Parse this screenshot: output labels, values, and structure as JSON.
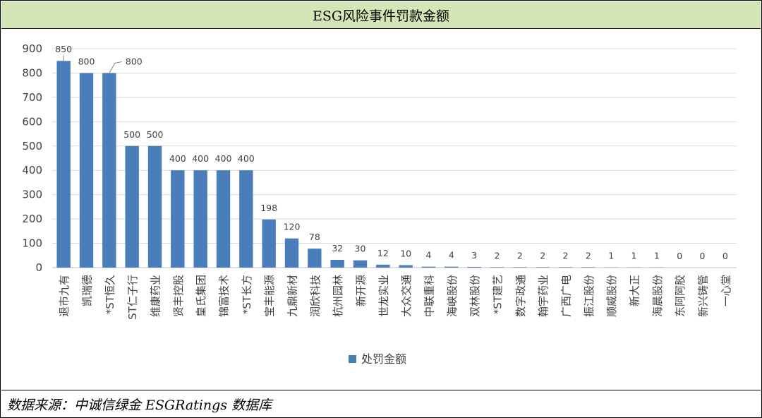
{
  "title": "ESG风险事件罚款金额",
  "footer": "数据来源：中诚信绿金 ESGRatings 数据库",
  "colors": {
    "bar": "#4a7ebb",
    "grid": "#d9d9d9",
    "title_bg": "#d5e6b6"
  },
  "chart_data": {
    "type": "bar",
    "categories": [
      "退市九有",
      "凯瑞德",
      "*ST恒久",
      "ST仁子行",
      "维康药业",
      "贤丰控股",
      "皇氏集团",
      "锦富技术",
      "*ST长方",
      "宝丰能源",
      "九鼎新材",
      "润欣科技",
      "杭州园林",
      "新开源",
      "世龙实业",
      "大众交通",
      "中联重科",
      "海峡股份",
      "双林股份",
      "*ST建艺",
      "数字政通",
      "翰宇药业",
      "广西广电",
      "振江股份",
      "顺威股份",
      "新大正",
      "海晨股份",
      "东阿阿胶",
      "新兴铸管",
      "一心堂"
    ],
    "series": [
      {
        "name": "处罚金额",
        "values": [
          850,
          800,
          800,
          500,
          500,
          400,
          400,
          400,
          400,
          198,
          120,
          78,
          32,
          30,
          12,
          10,
          4,
          4,
          3,
          2,
          2,
          2,
          2,
          2,
          1,
          1,
          1,
          0,
          0,
          0
        ]
      }
    ],
    "ylim": [
      0,
      900
    ],
    "yticks": [
      0,
      100,
      200,
      300,
      400,
      500,
      600,
      700,
      800,
      900
    ],
    "grid": true,
    "legend": "bottom"
  }
}
